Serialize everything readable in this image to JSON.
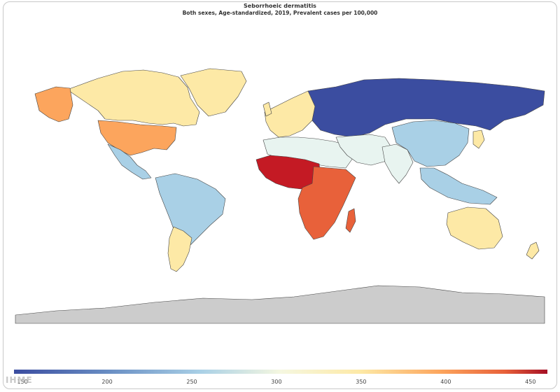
{
  "title": "Seborrhoeic dermatitis",
  "subtitle": "Both sexes, Age-standardized, 2019, Prevalent cases per 100,000",
  "colors": {
    "very_low": "#3b4da0",
    "low": "#a9d0e6",
    "low_mid": "#e8f4f0",
    "mid": "#fde9a6",
    "mid_high": "#fca55d",
    "high": "#e8613a",
    "very_high": "#c41a24",
    "antarctica": "#cccccc",
    "greenland": "#fde9a6"
  },
  "legend": {
    "ticks": [
      150,
      200,
      250,
      300,
      350,
      400,
      450
    ],
    "range": [
      145,
      460
    ]
  },
  "logo_text": "IHME"
}
